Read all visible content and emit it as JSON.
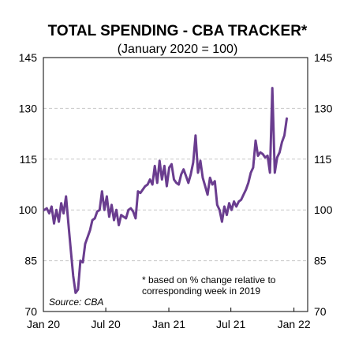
{
  "chart_data": {
    "type": "line",
    "title": "TOTAL SPENDING - CBA TRACKER*",
    "subtitle": "(January 2020 = 100)",
    "source": "Source: CBA",
    "footnote_line1": "*  based on % change  relative to",
    "footnote_line2": "corresponding  week in 2019",
    "ylim": [
      70,
      145
    ],
    "y_ticks": [
      70,
      85,
      100,
      115,
      130,
      145
    ],
    "x_range": [
      "2020-01-01",
      "2022-02-10"
    ],
    "x_ticks": [
      {
        "date": "2020-01-01",
        "label": "Jan 20"
      },
      {
        "date": "2020-07-01",
        "label": "Jul 20"
      },
      {
        "date": "2021-01-01",
        "label": "Jan 21"
      },
      {
        "date": "2021-07-01",
        "label": "Jul 21"
      },
      {
        "date": "2022-01-01",
        "label": "Jan 22"
      }
    ],
    "grid": "horizontal-dashed",
    "line_color": "#6A3D8F",
    "series": [
      {
        "points": [
          [
            "2020-01-04",
            100.0
          ],
          [
            "2020-01-11",
            100.5
          ],
          [
            "2020-01-18",
            99.0
          ],
          [
            "2020-01-25",
            101.0
          ],
          [
            "2020-02-01",
            96.0
          ],
          [
            "2020-02-08",
            100.0
          ],
          [
            "2020-02-15",
            96.5
          ],
          [
            "2020-02-22",
            102.0
          ],
          [
            "2020-02-29",
            99.0
          ],
          [
            "2020-03-07",
            104.0
          ],
          [
            "2020-03-14",
            96.0
          ],
          [
            "2020-03-21",
            88.0
          ],
          [
            "2020-03-28",
            80.5
          ],
          [
            "2020-04-04",
            75.5
          ],
          [
            "2020-04-11",
            76.5
          ],
          [
            "2020-04-18",
            85.0
          ],
          [
            "2020-04-25",
            84.5
          ],
          [
            "2020-05-02",
            90.0
          ],
          [
            "2020-05-09",
            92.0
          ],
          [
            "2020-05-16",
            94.0
          ],
          [
            "2020-05-23",
            97.0
          ],
          [
            "2020-05-30",
            97.5
          ],
          [
            "2020-06-06",
            99.5
          ],
          [
            "2020-06-13",
            100.0
          ],
          [
            "2020-06-20",
            105.5
          ],
          [
            "2020-06-27",
            100.0
          ],
          [
            "2020-07-04",
            104.0
          ],
          [
            "2020-07-11",
            98.0
          ],
          [
            "2020-07-18",
            101.5
          ],
          [
            "2020-07-25",
            97.0
          ],
          [
            "2020-08-01",
            100.0
          ],
          [
            "2020-08-08",
            95.5
          ],
          [
            "2020-08-15",
            98.5
          ],
          [
            "2020-08-22",
            98.0
          ],
          [
            "2020-08-29",
            97.5
          ],
          [
            "2020-09-05",
            100.0
          ],
          [
            "2020-09-12",
            100.5
          ],
          [
            "2020-09-19",
            99.5
          ],
          [
            "2020-09-26",
            97.5
          ],
          [
            "2020-10-03",
            105.5
          ],
          [
            "2020-10-10",
            105.0
          ],
          [
            "2020-10-17",
            106.0
          ],
          [
            "2020-10-24",
            107.0
          ],
          [
            "2020-10-31",
            107.5
          ],
          [
            "2020-11-07",
            109.0
          ],
          [
            "2020-11-14",
            107.5
          ],
          [
            "2020-11-21",
            113.0
          ],
          [
            "2020-11-28",
            108.0
          ],
          [
            "2020-12-05",
            114.5
          ],
          [
            "2020-12-12",
            109.0
          ],
          [
            "2020-12-19",
            113.0
          ],
          [
            "2020-12-26",
            107.0
          ],
          [
            "2021-01-02",
            112.5
          ],
          [
            "2021-01-09",
            113.5
          ],
          [
            "2021-01-16",
            109.0
          ],
          [
            "2021-01-23",
            108.0
          ],
          [
            "2021-01-30",
            107.5
          ],
          [
            "2021-02-06",
            110.5
          ],
          [
            "2021-02-13",
            112.0
          ],
          [
            "2021-02-20",
            110.0
          ],
          [
            "2021-02-27",
            108.0
          ],
          [
            "2021-03-06",
            110.5
          ],
          [
            "2021-03-13",
            114.0
          ],
          [
            "2021-03-20",
            122.0
          ],
          [
            "2021-03-27",
            111.0
          ],
          [
            "2021-04-03",
            114.5
          ],
          [
            "2021-04-10",
            109.5
          ],
          [
            "2021-04-17",
            107.0
          ],
          [
            "2021-04-24",
            104.5
          ],
          [
            "2021-05-01",
            109.5
          ],
          [
            "2021-05-08",
            107.5
          ],
          [
            "2021-05-15",
            108.5
          ],
          [
            "2021-05-22",
            101.5
          ],
          [
            "2021-05-29",
            100.0
          ],
          [
            "2021-06-05",
            96.5
          ],
          [
            "2021-06-12",
            101.0
          ],
          [
            "2021-06-19",
            98.5
          ],
          [
            "2021-06-26",
            102.0
          ],
          [
            "2021-07-03",
            100.0
          ],
          [
            "2021-07-10",
            102.5
          ],
          [
            "2021-07-17",
            101.0
          ],
          [
            "2021-07-24",
            102.5
          ],
          [
            "2021-07-31",
            103.0
          ],
          [
            "2021-08-07",
            104.5
          ],
          [
            "2021-08-14",
            106.0
          ],
          [
            "2021-08-21",
            108.0
          ],
          [
            "2021-08-28",
            111.0
          ],
          [
            "2021-09-04",
            112.5
          ],
          [
            "2021-09-11",
            120.5
          ],
          [
            "2021-09-18",
            116.0
          ],
          [
            "2021-09-25",
            117.0
          ],
          [
            "2021-10-02",
            116.5
          ],
          [
            "2021-10-09",
            115.5
          ],
          [
            "2021-10-16",
            116.0
          ],
          [
            "2021-10-23",
            111.0
          ],
          [
            "2021-10-30",
            136.0
          ],
          [
            "2021-11-06",
            111.0
          ],
          [
            "2021-11-13",
            115.5
          ],
          [
            "2021-11-20",
            117.0
          ],
          [
            "2021-11-27",
            120.0
          ],
          [
            "2021-12-04",
            122.0
          ],
          [
            "2021-12-11",
            127.0
          ]
        ]
      }
    ]
  }
}
